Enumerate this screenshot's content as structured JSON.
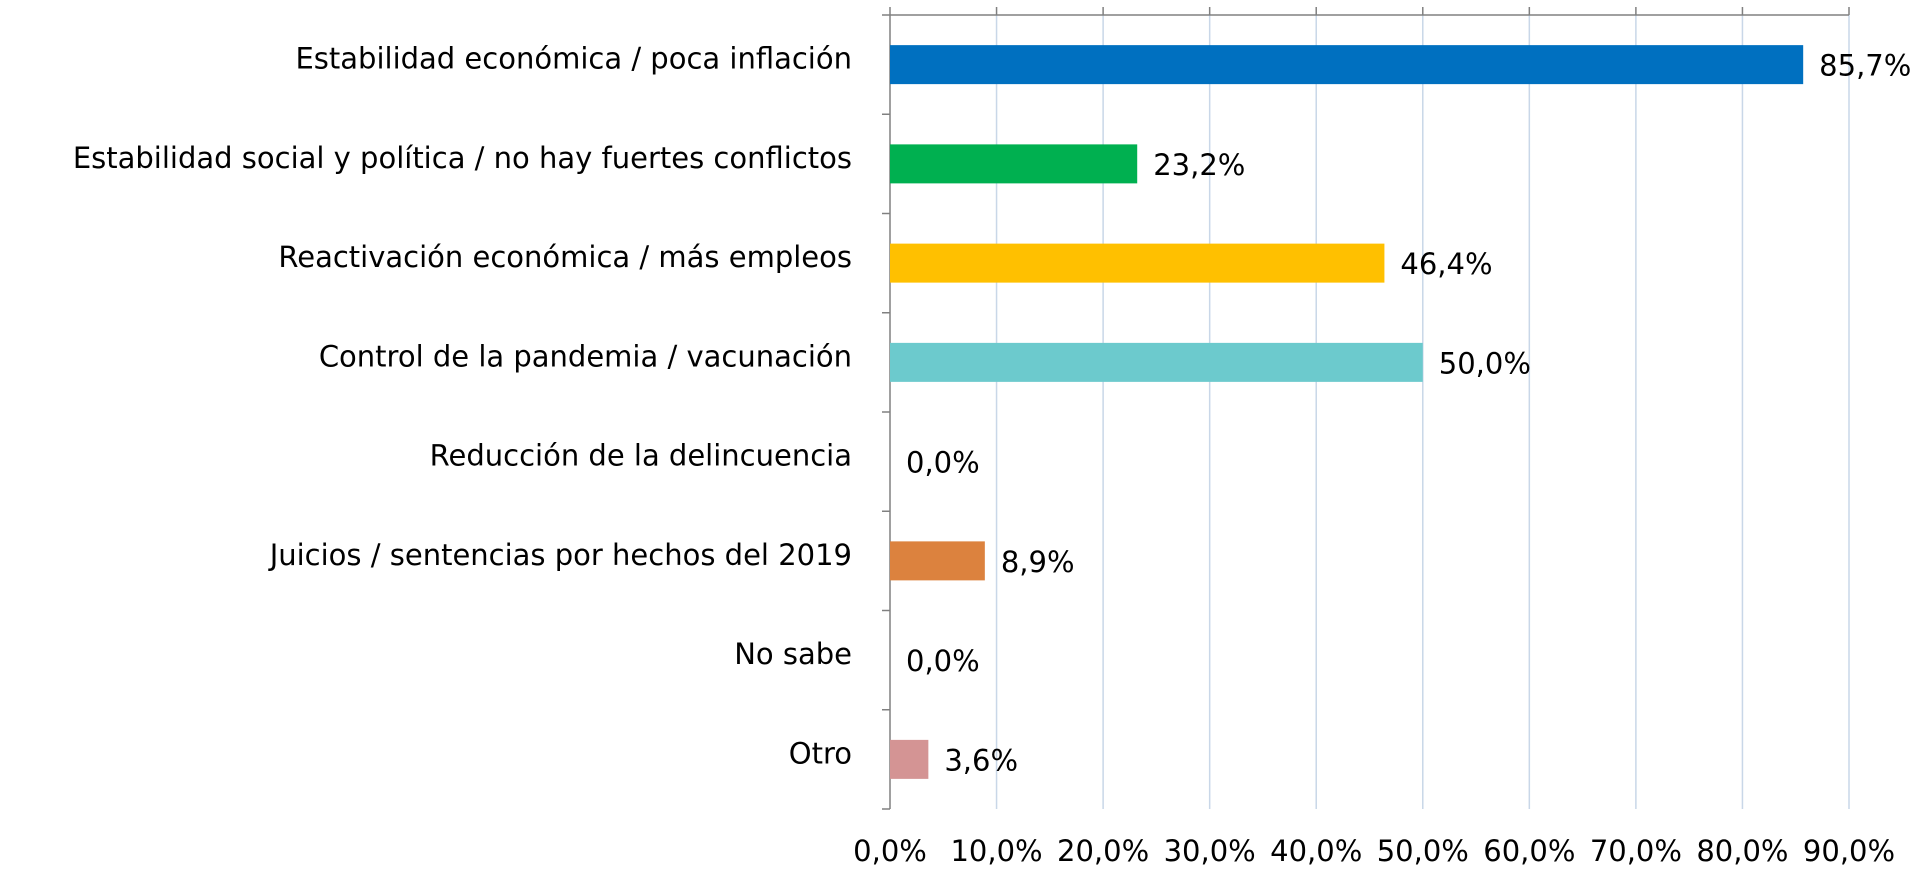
{
  "chart_data": {
    "type": "bar",
    "orientation": "horizontal",
    "categories": [
      "Estabilidad económica / poca inflación",
      "Estabilidad social y política / no hay fuertes conflictos",
      "Reactivación económica / más empleos",
      "Control de la pandemia / vacunación",
      "Reducción de la delincuencia",
      "Juicios / sentencias por hechos del 2019",
      "No sabe",
      "Otro"
    ],
    "values": [
      85.7,
      23.2,
      46.4,
      50.0,
      0.0,
      8.9,
      0.0,
      3.6
    ],
    "value_labels": [
      "85,7%",
      "23,2%",
      "46,4%",
      "50,0%",
      "0,0%",
      "8,9%",
      "0,0%",
      "3,6%"
    ],
    "colors": [
      "#0070c0",
      "#00b050",
      "#ffc000",
      "#6ccacd",
      "#a5a5a5",
      "#dc823e",
      "#7f7f7f",
      "#d49494"
    ],
    "xlim": [
      0,
      90
    ],
    "xticks": [
      {
        "value": 0,
        "label": "0,0%"
      },
      {
        "value": 10,
        "label": "10,0%"
      },
      {
        "value": 20,
        "label": "20,0%"
      },
      {
        "value": 30,
        "label": "30,0%"
      },
      {
        "value": 40,
        "label": "40,0%"
      },
      {
        "value": 50,
        "label": "50,0%"
      },
      {
        "value": 60,
        "label": "60,0%"
      },
      {
        "value": 70,
        "label": "70,0%"
      },
      {
        "value": 80,
        "label": "80,0%"
      },
      {
        "value": 90,
        "label": "90,0%"
      }
    ],
    "grid": true
  }
}
